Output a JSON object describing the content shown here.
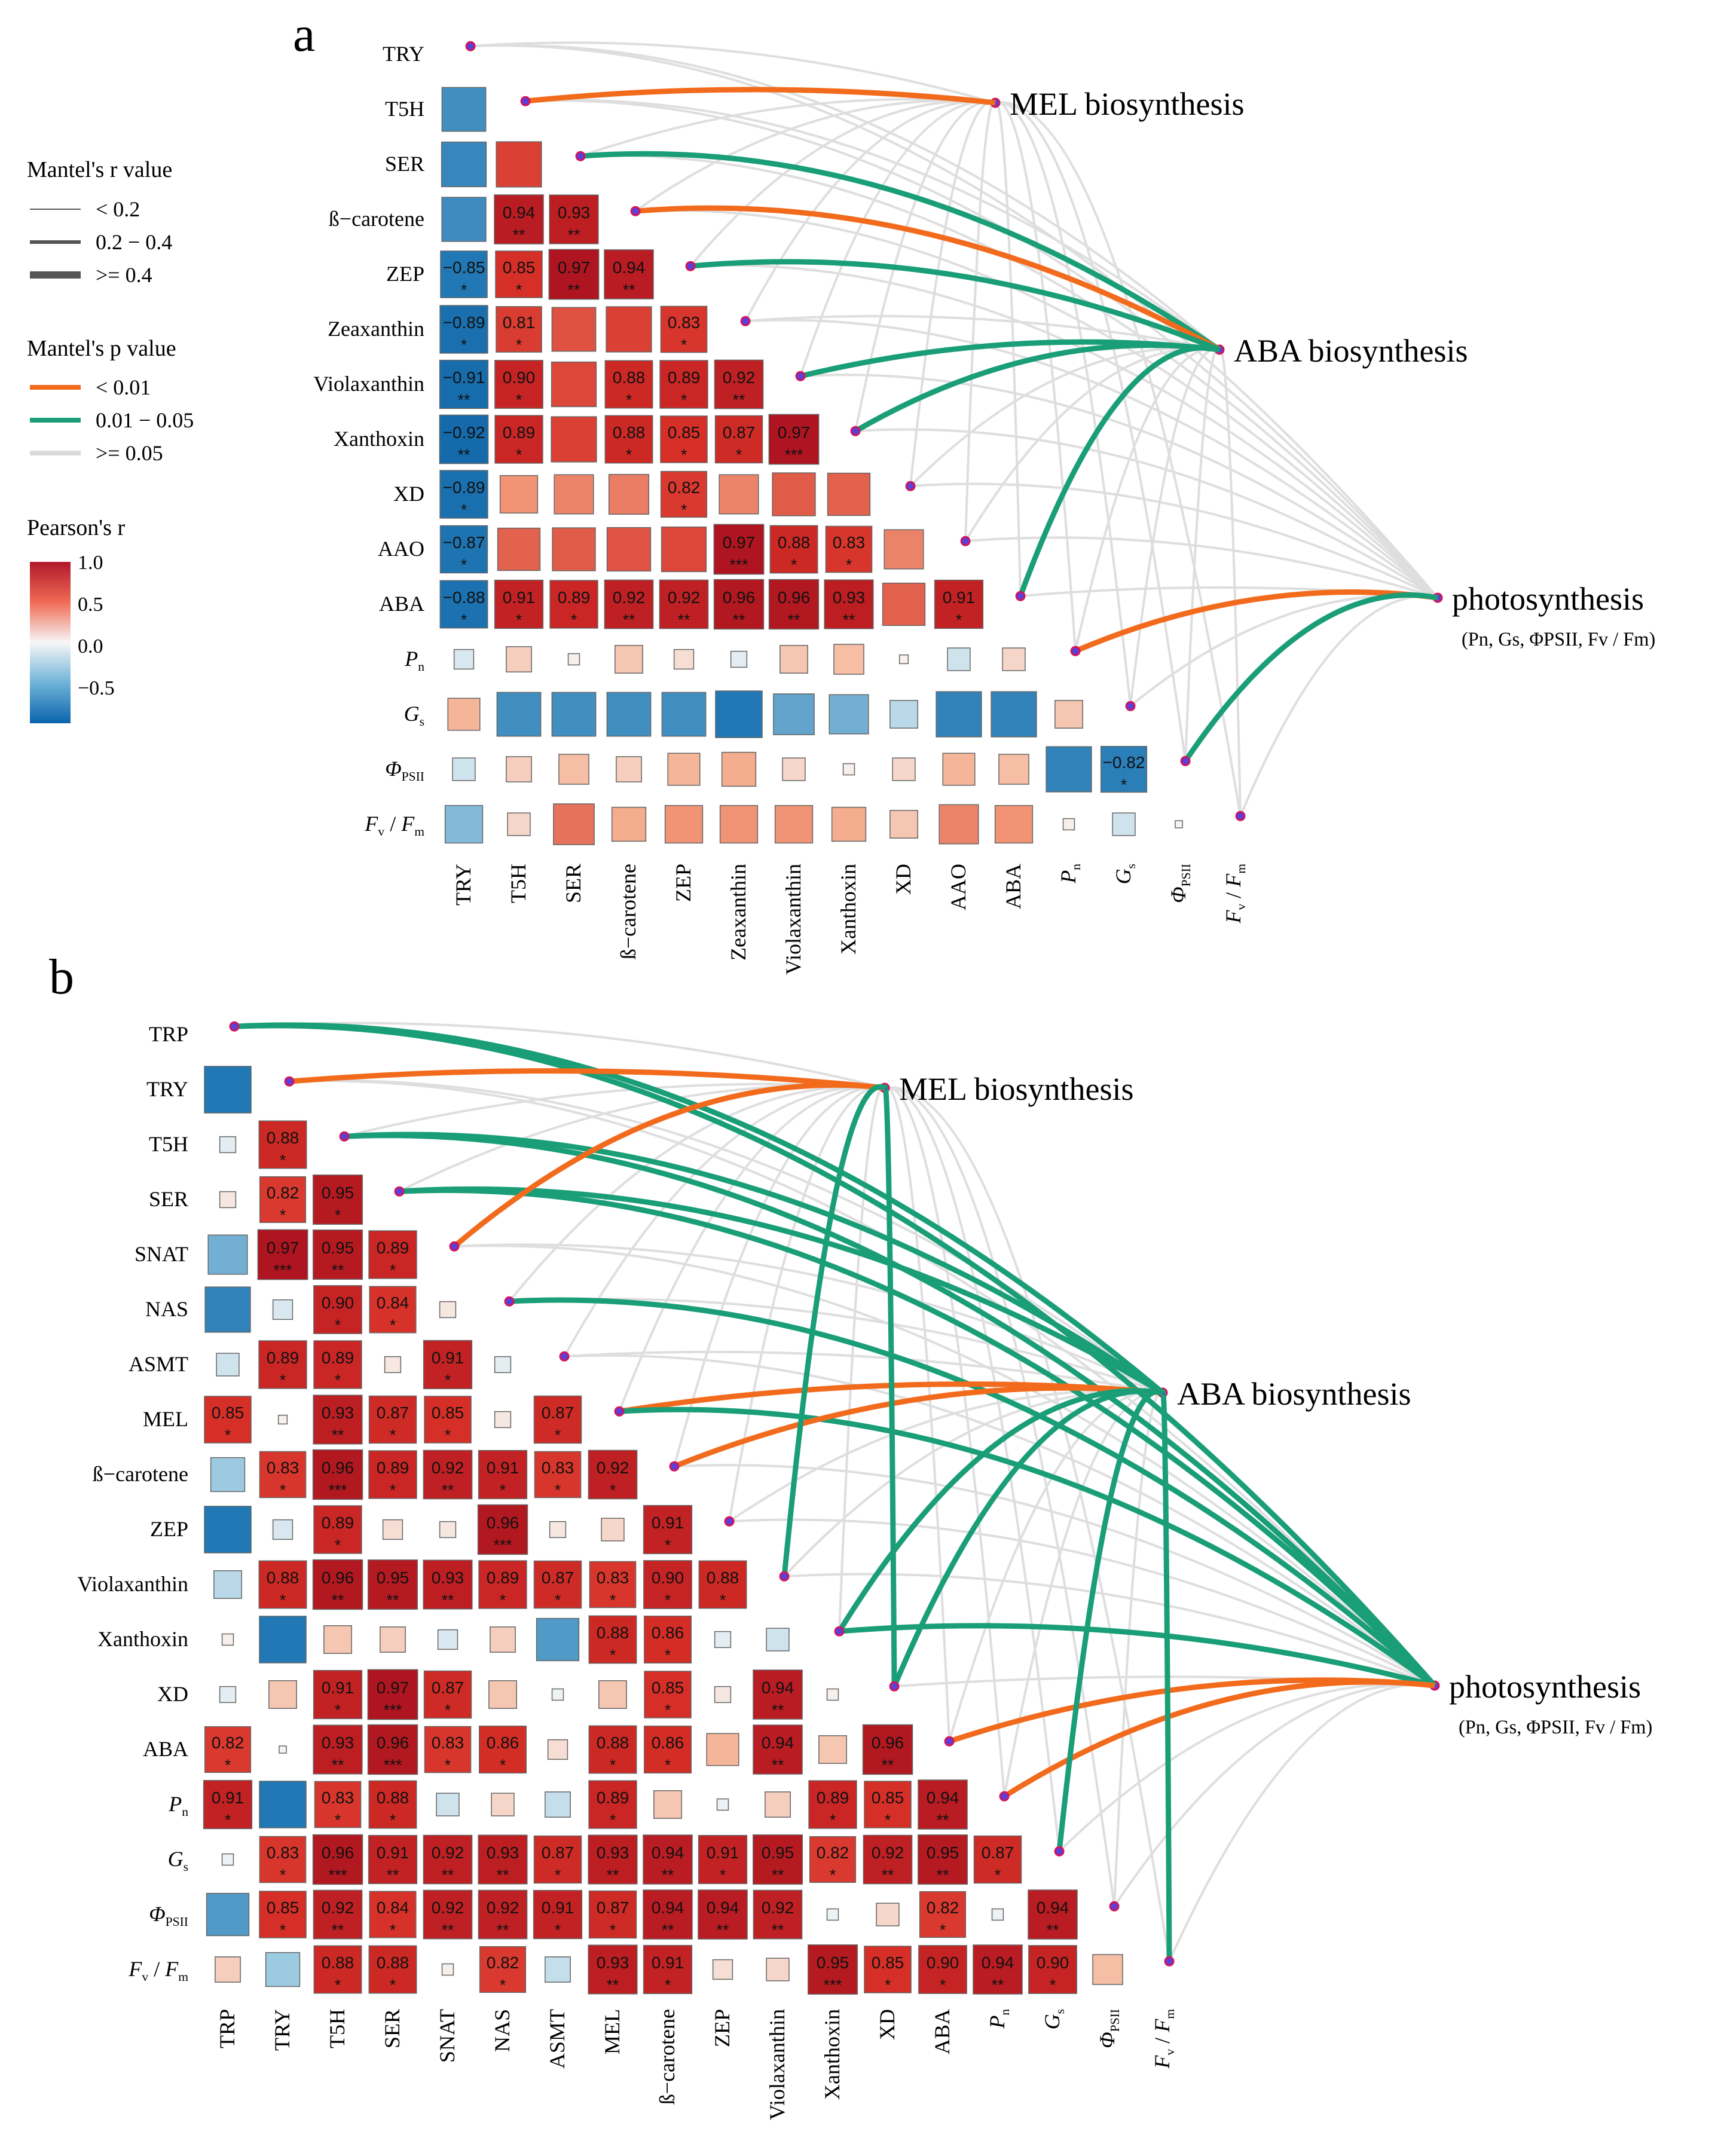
{
  "chart_data": [
    {
      "type": "heatmap",
      "panel_label": "a",
      "variables": [
        "TRY",
        "T5H",
        "SER",
        "ß−carotene",
        "ZEP",
        "Zeaxanthin",
        "Violaxanthin",
        "Xanthoxin",
        "XD",
        "AAO",
        "ABA",
        "Pn",
        "Gs",
        "ΦPSII",
        "Fv/Fm"
      ],
      "lower_triangle_correlations": [
        [],
        [
          -0.75
        ],
        [
          -0.78,
          0.8
        ],
        [
          -0.76,
          0.94,
          0.93
        ],
        [
          -0.85,
          0.85,
          0.97,
          0.94
        ],
        [
          -0.89,
          0.81,
          0.75,
          0.8,
          0.83
        ],
        [
          -0.91,
          0.9,
          0.78,
          0.88,
          0.89,
          0.92
        ],
        [
          -0.92,
          0.89,
          0.8,
          0.88,
          0.85,
          0.87,
          0.97
        ],
        [
          -0.89,
          0.55,
          0.6,
          0.62,
          0.82,
          0.6,
          0.72,
          0.7
        ],
        [
          -0.87,
          0.7,
          0.72,
          0.74,
          0.78,
          0.97,
          0.88,
          0.83,
          0.6
        ],
        [
          -0.88,
          0.91,
          0.89,
          0.92,
          0.92,
          0.96,
          0.96,
          0.93,
          0.7,
          0.91
        ],
        [
          -0.15,
          0.25,
          0.05,
          0.3,
          0.15,
          -0.1,
          0.3,
          0.35,
          0.03,
          -0.2,
          0.2
        ],
        [
          0.4,
          -0.75,
          -0.75,
          -0.75,
          -0.75,
          -0.85,
          -0.65,
          -0.6,
          -0.3,
          -0.8,
          -0.8,
          0.3
        ],
        [
          -0.2,
          0.25,
          0.35,
          0.25,
          0.4,
          0.45,
          0.2,
          0.05,
          0.2,
          0.4,
          0.35,
          -0.8,
          -0.82
        ],
        [
          -0.55,
          0.2,
          0.65,
          0.45,
          0.55,
          0.55,
          0.55,
          0.45,
          0.3,
          0.6,
          0.55,
          0.05,
          -0.2,
          0.02
        ]
      ],
      "significance": [
        [],
        [
          ""
        ],
        [
          "",
          ""
        ],
        [
          "",
          "**",
          "**"
        ],
        [
          "*",
          "*",
          "**",
          "**"
        ],
        [
          "*",
          "*",
          "",
          "",
          "*"
        ],
        [
          "**",
          "*",
          "",
          "*",
          "*",
          "**"
        ],
        [
          "**",
          "*",
          "",
          "*",
          "*",
          "*",
          "***"
        ],
        [
          "*",
          "",
          "",
          "",
          "*",
          "",
          "",
          ""
        ],
        [
          "*",
          "",
          "",
          "",
          "",
          "***",
          "*",
          "*",
          ""
        ],
        [
          "*",
          "*",
          "*",
          "**",
          "**",
          "**",
          "**",
          "**",
          "",
          "*"
        ],
        [],
        [],
        [
          "",
          "",
          "",
          "",
          "",
          "",
          "",
          "",
          "",
          "",
          "",
          "",
          "*"
        ],
        []
      ],
      "mantel_groups": [
        "MEL biosynthesis",
        "ABA biosynthesis",
        "photosynthesis"
      ],
      "mantel_links": [
        {
          "group": "MEL biosynthesis",
          "var": "T5H",
          "p": "<0.01",
          "r": ">=0.4"
        },
        {
          "group": "MEL biosynthesis",
          "var": "ß−carotene",
          "p": "<0.01",
          "r": ">=0.4"
        },
        {
          "group": "ABA biosynthesis",
          "var": "SER",
          "p": "0.01-0.05",
          "r": ">=0.4"
        },
        {
          "group": "ABA biosynthesis",
          "var": "ZEP",
          "p": "0.01-0.05",
          "r": ">=0.4"
        },
        {
          "group": "ABA biosynthesis",
          "var": "Violaxanthin",
          "p": "0.01-0.05",
          "r": ">=0.4"
        },
        {
          "group": "ABA biosynthesis",
          "var": "Xanthoxin",
          "p": "0.01-0.05",
          "r": ">=0.4"
        },
        {
          "group": "ABA biosynthesis",
          "var": "ABA",
          "p": "0.01-0.05",
          "r": ">=0.4"
        },
        {
          "group": "photosynthesis",
          "var": "Pn",
          "p": "<0.01",
          "r": ">=0.4"
        },
        {
          "group": "photosynthesis",
          "var": "ΦPSII",
          "p": "0.01-0.05",
          "r": ">=0.4"
        }
      ]
    },
    {
      "type": "heatmap",
      "panel_label": "b",
      "variables": [
        "TRP",
        "TRY",
        "T5H",
        "SER",
        "SNAT",
        "NAS",
        "ASMT",
        "MEL",
        "ß−carotene",
        "ZEP",
        "Violaxanthin",
        "Xanthoxin",
        "XD",
        "ABA",
        "Pn",
        "Gs",
        "ΦPSII",
        "Fv/Fm"
      ],
      "lower_triangle_correlations": [
        [],
        [
          -0.85
        ],
        [
          -0.1,
          0.88
        ],
        [
          0.1,
          0.82,
          0.95
        ],
        [
          -0.6,
          0.97,
          0.95,
          0.89
        ],
        [
          -0.8,
          -0.15,
          0.9,
          0.84,
          0.1
        ],
        [
          -0.2,
          0.89,
          0.89,
          0.1,
          0.91,
          -0.1
        ],
        [
          0.85,
          0.03,
          0.93,
          0.87,
          0.85,
          0.1,
          0.87
        ],
        [
          -0.45,
          0.83,
          0.96,
          0.89,
          0.92,
          0.91,
          0.83,
          0.92
        ],
        [
          -0.85,
          -0.15,
          0.89,
          0.15,
          0.1,
          0.96,
          0.1,
          0.2,
          0.91
        ],
        [
          -0.3,
          0.88,
          0.96,
          0.95,
          0.93,
          0.89,
          0.87,
          0.83,
          0.9,
          0.88
        ],
        [
          0.05,
          -0.85,
          0.3,
          0.25,
          -0.15,
          0.25,
          -0.7,
          0.88,
          0.86,
          -0.1,
          -0.2
        ],
        [
          -0.1,
          0.3,
          0.91,
          0.97,
          0.87,
          0.3,
          -0.05,
          0.3,
          0.85,
          0.1,
          0.94,
          0.05
        ],
        [
          0.82,
          0.02,
          0.93,
          0.96,
          0.83,
          0.86,
          0.15,
          0.88,
          0.86,
          0.4,
          0.94,
          0.3,
          0.96
        ],
        [
          0.91,
          -0.85,
          0.83,
          0.88,
          -0.2,
          0.2,
          -0.25,
          0.89,
          0.3,
          -0.05,
          0.25,
          0.89,
          0.85,
          0.94
        ],
        [
          -0.05,
          0.83,
          0.96,
          0.91,
          0.92,
          0.93,
          0.87,
          0.93,
          0.94,
          0.91,
          0.95,
          0.82,
          0.92,
          0.95,
          0.87
        ],
        [
          -0.7,
          0.85,
          0.92,
          0.84,
          0.92,
          0.92,
          0.91,
          0.87,
          0.94,
          0.94,
          0.92,
          -0.05,
          0.2,
          0.82,
          -0.05,
          0.94
        ],
        [
          0.25,
          -0.45,
          0.88,
          0.88,
          0.05,
          0.82,
          -0.25,
          0.93,
          0.91,
          0.15,
          0.2,
          0.95,
          0.85,
          0.9,
          0.94,
          0.9,
          0.35
        ]
      ],
      "significance": [
        [],
        [
          ""
        ],
        [
          "",
          "*"
        ],
        [
          "",
          "*",
          "*"
        ],
        [
          "",
          "***",
          "**",
          "*"
        ],
        [
          "",
          "",
          "*",
          "*",
          ""
        ],
        [
          "",
          "*",
          "*",
          "",
          "*",
          ""
        ],
        [
          "*",
          "",
          "**",
          "*",
          "*",
          "",
          "*"
        ],
        [
          "",
          "*",
          "***",
          "*",
          "**",
          "*",
          "*",
          "*"
        ],
        [
          "",
          "",
          "*",
          "",
          "",
          "***",
          "",
          "",
          "*"
        ],
        [
          "",
          "*",
          "**",
          "**",
          "**",
          "*",
          "*",
          "*",
          "*",
          "*"
        ],
        [
          "",
          "",
          "",
          "",
          "",
          "",
          "",
          "*",
          "*",
          "",
          ""
        ],
        [
          "",
          "",
          "*",
          "***",
          "*",
          "",
          "",
          "",
          "*",
          "",
          "**",
          ""
        ],
        [
          "*",
          "",
          "**",
          "***",
          "*",
          "*",
          "",
          "*",
          "*",
          "",
          "**",
          "",
          "**"
        ],
        [
          "*",
          "",
          "*",
          "*",
          "",
          "",
          "",
          "*",
          "",
          "",
          "",
          "*",
          "*",
          "**"
        ],
        [
          "",
          "*",
          "***",
          "**",
          "**",
          "**",
          "*",
          "**",
          "**",
          "*",
          "**",
          "*",
          "**",
          "**",
          "*"
        ],
        [
          "",
          "*",
          "**",
          "*",
          "**",
          "**",
          "*",
          "*",
          "**",
          "**",
          "**",
          "",
          "",
          "*",
          "",
          "**"
        ],
        [
          "",
          "",
          "*",
          "*",
          "",
          "*",
          "",
          "**",
          "*",
          "",
          "",
          "***",
          "*",
          "*",
          "**",
          "*",
          ""
        ]
      ],
      "mantel_groups": [
        "MEL biosynthesis",
        "ABA biosynthesis",
        "photosynthesis"
      ]
    }
  ],
  "legend": {
    "mantel_r_title": "Mantel's r value",
    "mantel_r_items": [
      "< 0.2",
      "0.2 − 0.4",
      ">= 0.4"
    ],
    "mantel_p_title": "Mantel's p value",
    "mantel_p_items": [
      "< 0.01",
      "0.01 − 0.05",
      ">= 0.05"
    ],
    "pearson_title": "Pearson's r",
    "pearson_ticks": [
      "1.0",
      "0.5",
      "0.0",
      "−0.5"
    ]
  },
  "labels": {
    "mel": "MEL biosynthesis",
    "aba": "ABA biosynthesis",
    "photo": "photosynthesis",
    "photo_sub": "(Pn, Gs, ΦPSII, Fv / Fm)"
  },
  "colors": {
    "orange": "#f26b1d",
    "green": "#1a9e77",
    "grey": "#d9d9d9",
    "node": "#d4145a",
    "node_fill": "#5b3fd9"
  }
}
